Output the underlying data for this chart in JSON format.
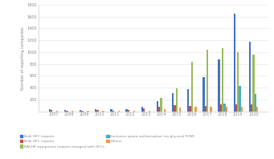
{
  "years": [
    2007,
    2008,
    2009,
    2010,
    2011,
    2012,
    2013,
    2014,
    2015,
    2016,
    2017,
    2018,
    2019,
    2020
  ],
  "bulk_hfc_imports": [
    30,
    28,
    25,
    35,
    35,
    40,
    75,
    170,
    300,
    370,
    580,
    880,
    1650,
    1180
  ],
  "bulk_hfc_exports": [
    15,
    10,
    8,
    15,
    12,
    15,
    55,
    75,
    100,
    95,
    95,
    110,
    110,
    110
  ],
  "rachp_equipment": [
    0,
    0,
    0,
    0,
    0,
    0,
    0,
    230,
    390,
    840,
    1040,
    1060,
    1000,
    960
  ],
  "exclusive_quota": [
    0,
    0,
    0,
    0,
    0,
    0,
    0,
    0,
    0,
    0,
    0,
    130,
    430,
    290
  ],
  "others": [
    5,
    5,
    5,
    5,
    5,
    5,
    5,
    40,
    60,
    80,
    80,
    80,
    80,
    80
  ],
  "colors": {
    "bulk_hfc_imports": "#4472C4",
    "bulk_hfc_exports": "#C0504D",
    "rachp_equipment": "#9BBB59",
    "exclusive_quota": "#4BACC6",
    "others": "#F79646"
  },
  "ylim": [
    0,
    1800
  ],
  "yticks": [
    200,
    400,
    600,
    800,
    1000,
    1200,
    1400,
    1600,
    1800
  ],
  "ylabel": "Number of reporting companies",
  "legend_entries": [
    "Bulk HFC imports",
    "Bulk HFC exports",
    "RACHP equipment imports charged with HFCs",
    "Exclusive quota authorisation (no physical POM)",
    "Others"
  ],
  "background_color": "#FFFFFF",
  "bar_width": 0.12,
  "grid_color": "#E8E8E8",
  "tick_color": "#888888",
  "spine_color": "#CCCCCC"
}
